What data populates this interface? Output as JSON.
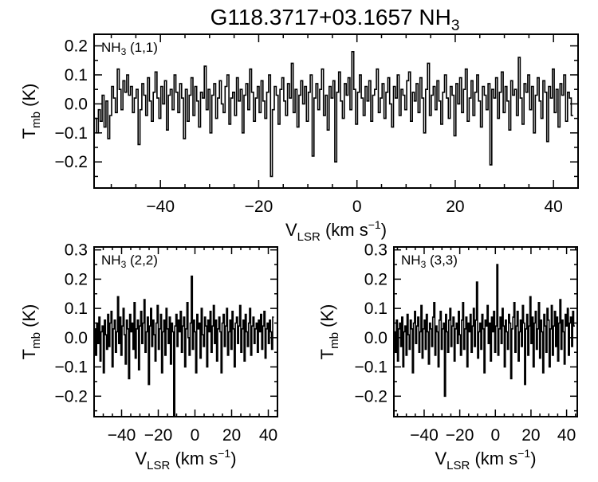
{
  "title": {
    "main": "G118.3717+03.1657 NH",
    "sub": "3"
  },
  "chart_data": [
    {
      "type": "line",
      "panel": "top",
      "step": true,
      "label": {
        "main": "NH",
        "sub": "3",
        "rest": " (1,1)"
      },
      "xlabel": {
        "main": "V",
        "sub": "LSR",
        "rest": " (km s",
        "sup": "−1",
        "end": ")"
      },
      "ylabel": {
        "main": "T",
        "sub": "mb",
        "rest": " (K)"
      },
      "xlim": [
        -53.5,
        45
      ],
      "ylim": [
        -0.29,
        0.24
      ],
      "xticks": [
        -40,
        -20,
        0,
        20,
        40
      ],
      "xticklabels": [
        "−40",
        "−20",
        "0",
        "20",
        "40"
      ],
      "yticks": [
        -0.2,
        -0.1,
        0.0,
        0.1,
        0.2
      ],
      "yticklabels": [
        "−0.2",
        "−0.1",
        "0.0",
        "0.1",
        "0.2"
      ],
      "x_start": -53.4,
      "x_step": 0.385,
      "series": [
        {
          "values": [
            -0.05,
            -0.1,
            -0.02,
            -0.06,
            0.03,
            -0.08,
            0.01,
            -0.12,
            -0.04,
            0.06,
            0.02,
            -0.03,
            0.12,
            0.05,
            -0.02,
            0.08,
            0.04,
            0.1,
            0.03,
            0.06,
            -0.03,
            0.02,
            0.05,
            -0.14,
            -0.02,
            0.07,
            0.03,
            -0.04,
            0.09,
            0.01,
            -0.06,
            0.04,
            0.11,
            0.02,
            -0.05,
            0.06,
            0.0,
            0.08,
            -0.09,
            0.03,
            0.05,
            -0.02,
            0.1,
            0.04,
            -0.03,
            0.07,
            0.02,
            -0.12,
            0.05,
            -0.06,
            0.03,
            0.09,
            -0.04,
            0.06,
            0.01,
            -0.08,
            0.04,
            0.02,
            0.13,
            -0.02,
            0.05,
            -0.1,
            0.03,
            0.07,
            -0.05,
            0.02,
            0.08,
            0.0,
            -0.03,
            0.06,
            0.1,
            -0.07,
            0.02,
            0.04,
            -0.04,
            0.09,
            0.01,
            0.05,
            -0.1,
            0.03,
            0.07,
            -0.02,
            0.12,
            0.04,
            -0.06,
            0.02,
            0.06,
            -0.03,
            0.08,
            0.01,
            -0.05,
            0.04,
            0.1,
            -0.25,
            -0.02,
            0.06,
            0.03,
            -0.07,
            0.05,
            0.09,
            0.01,
            -0.04,
            0.07,
            0.02,
            0.14,
            -0.03,
            0.05,
            -0.08,
            0.03,
            0.08,
            0.0,
            0.06,
            -0.06,
            0.04,
            0.1,
            -0.18,
            0.02,
            0.07,
            -0.02,
            0.05,
            0.12,
            -0.04,
            0.03,
            -0.09,
            0.06,
            0.02,
            0.08,
            -0.2,
            0.04,
            0.11,
            0.01,
            -0.05,
            0.07,
            0.03,
            0.09,
            -0.02,
            0.18,
            0.05,
            -0.07,
            0.04,
            0.1,
            0.02,
            -0.04,
            0.06,
            0.01,
            0.08,
            -0.06,
            0.03,
            0.05,
            0.12,
            -0.03,
            0.02,
            0.07,
            -0.05,
            0.04,
            0.09,
            0.0,
            -0.08,
            0.06,
            0.02,
            0.1,
            -0.04,
            0.05,
            0.03,
            -0.02,
            0.08,
            0.11,
            -0.06,
            0.04,
            0.01,
            0.07,
            -0.03,
            0.09,
            0.02,
            -0.1,
            0.05,
            0.14,
            -0.04,
            0.03,
            0.06,
            -0.02,
            0.08,
            0.01,
            -0.07,
            0.04,
            0.1,
            0.02,
            -0.05,
            0.06,
            0.03,
            -0.11,
            0.07,
            0.0,
            0.09,
            -0.03,
            0.05,
            0.12,
            -0.06,
            0.02,
            0.08,
            -0.04,
            0.04,
            0.1,
            0.01,
            -0.08,
            0.06,
            0.03,
            -0.02,
            0.07,
            -0.21,
            0.05,
            0.02,
            0.09,
            -0.05,
            0.04,
            0.11,
            -0.03,
            0.06,
            0.01,
            -0.09,
            0.08,
            0.03,
            0.05,
            -0.04,
            0.16,
            0.02,
            -0.07,
            0.07,
            0.04,
            0.1,
            -0.02,
            0.06,
            -0.1,
            0.03,
            0.09,
            0.01,
            -0.05,
            0.08,
            0.04,
            -0.13,
            0.06,
            0.02,
            0.12,
            -0.03,
            0.05,
            -0.08,
            0.07,
            0.03,
            0.1,
            -0.06,
            0.04,
            0.02,
            -0.04
          ]
        }
      ]
    },
    {
      "type": "line",
      "panel": "bottom-left",
      "step": true,
      "label": {
        "main": "NH",
        "sub": "3",
        "rest": " (2,2)"
      },
      "xlabel": {
        "main": "V",
        "sub": "LSR",
        "rest": " (km s",
        "sup": "−1",
        "end": ")"
      },
      "ylabel": {
        "main": "T",
        "sub": "mb",
        "rest": " (K)"
      },
      "xlim": [
        -55,
        45
      ],
      "ylim": [
        -0.27,
        0.31
      ],
      "xticks": [
        -40,
        -20,
        0,
        20,
        40
      ],
      "xticklabels": [
        "−40",
        "−20",
        "0",
        "20",
        "40"
      ],
      "yticks": [
        -0.2,
        -0.1,
        0.0,
        0.1,
        0.2,
        0.3
      ],
      "yticklabels": [
        "−0.2",
        "−0.1",
        "0.0",
        "0.1",
        "0.2",
        "0.3"
      ],
      "x_start": -54.8,
      "x_step": 0.6,
      "series": [
        {
          "values": [
            0.03,
            -0.06,
            0.05,
            -0.02,
            0.07,
            -0.08,
            0.02,
            0.04,
            -0.12,
            0.06,
            0.01,
            -0.04,
            0.08,
            -0.03,
            0.05,
            0.09,
            -0.1,
            0.03,
            0.06,
            -0.05,
            0.02,
            0.14,
            -0.02,
            0.07,
            -0.06,
            0.04,
            0.1,
            0.01,
            -0.09,
            0.06,
            0.03,
            -0.14,
            0.08,
            0.02,
            0.05,
            -0.04,
            0.12,
            -0.07,
            0.03,
            0.06,
            -0.11,
            0.04,
            0.09,
            -0.02,
            0.05,
            0.13,
            -0.05,
            0.02,
            0.07,
            -0.16,
            0.04,
            0.1,
            -0.03,
            0.06,
            0.01,
            -0.08,
            0.05,
            0.11,
            -0.04,
            0.03,
            0.08,
            -0.12,
            0.02,
            0.06,
            -0.06,
            0.1,
            0.03,
            -0.02,
            0.07,
            -0.09,
            0.05,
            0.02,
            -0.27,
            0.04,
            0.08,
            -0.03,
            0.06,
            0.02,
            0.09,
            -0.05,
            0.04,
            0.07,
            -0.1,
            0.03,
            0.12,
            0.0,
            -0.06,
            0.05,
            0.21,
            -0.04,
            0.06,
            0.02,
            -0.12,
            0.08,
            0.03,
            0.05,
            -0.07,
            0.1,
            0.01,
            -0.03,
            0.07,
            0.04,
            -0.1,
            0.06,
            0.02,
            0.09,
            -0.05,
            0.04,
            0.11,
            -0.02,
            0.06,
            -0.08,
            0.03,
            0.07,
            0.02,
            -0.12,
            0.05,
            0.08,
            -0.03,
            0.04,
            0.1,
            -0.06,
            0.02,
            0.06,
            -0.04,
            0.09,
            0.03,
            -0.1,
            0.05,
            0.07,
            -0.02,
            0.04,
            0.11,
            -0.05,
            0.03,
            0.06,
            -0.08,
            0.08,
            0.02,
            -0.03,
            0.05,
            0.1,
            -0.06,
            0.04,
            0.07,
            -0.02,
            0.03,
            0.05,
            -0.05,
            0.06,
            0.02,
            0.08,
            -0.04,
            0.04,
            0.09,
            -0.07,
            0.03,
            0.05,
            -0.02,
            0.06,
            0.02,
            -0.04,
            0.07
          ]
        }
      ]
    },
    {
      "type": "line",
      "panel": "bottom-right",
      "step": true,
      "label": {
        "main": "NH",
        "sub": "3",
        "rest": " (3,3)"
      },
      "xlabel": {
        "main": "V",
        "sub": "LSR",
        "rest": " (km s",
        "sup": "−1",
        "end": ")"
      },
      "ylabel": {
        "main": "T",
        "sub": "mb",
        "rest": " (K)"
      },
      "xlim": [
        -57,
        46
      ],
      "ylim": [
        -0.27,
        0.31
      ],
      "xticks": [
        -40,
        -20,
        0,
        20,
        40
      ],
      "xticklabels": [
        "−40",
        "−20",
        "0",
        "20",
        "40"
      ],
      "yticks": [
        -0.2,
        -0.1,
        0.0,
        0.1,
        0.2,
        0.3
      ],
      "yticklabels": [
        "−0.2",
        "−0.1",
        "0.0",
        "0.1",
        "0.2",
        "0.3"
      ],
      "x_start": -56.8,
      "x_step": 0.6,
      "series": [
        {
          "values": [
            0.02,
            -0.05,
            0.06,
            -0.08,
            0.03,
            0.05,
            -0.03,
            0.07,
            -0.1,
            0.02,
            0.04,
            -0.06,
            0.08,
            0.01,
            -0.04,
            0.06,
            0.03,
            -0.12,
            0.05,
            0.09,
            -0.02,
            0.04,
            0.07,
            -0.05,
            0.02,
            0.11,
            -0.07,
            0.03,
            0.06,
            -0.04,
            0.08,
            0.02,
            -0.09,
            0.05,
            0.03,
            -0.03,
            0.07,
            0.12,
            -0.06,
            0.04,
            0.02,
            -0.1,
            0.06,
            0.09,
            -0.04,
            0.03,
            0.05,
            -0.2,
            0.08,
            0.02,
            -0.05,
            0.06,
            0.1,
            -0.03,
            0.04,
            0.07,
            -0.08,
            0.03,
            0.05,
            -0.02,
            0.09,
            0.01,
            -0.06,
            0.06,
            0.12,
            -0.04,
            0.03,
            0.07,
            -0.1,
            0.05,
            0.02,
            0.08,
            -0.05,
            0.04,
            0.1,
            -0.03,
            0.06,
            0.19,
            -0.07,
            0.02,
            0.05,
            -0.04,
            0.08,
            0.03,
            -0.12,
            0.06,
            0.04,
            0.11,
            -0.02,
            0.05,
            -0.08,
            0.07,
            0.02,
            0.09,
            -0.05,
            0.04,
            0.25,
            -0.06,
            0.03,
            0.07,
            -0.02,
            0.1,
            0.04,
            -0.1,
            0.06,
            0.02,
            -0.04,
            0.08,
            0.05,
            -0.14,
            0.03,
            0.07,
            0.12,
            -0.05,
            0.04,
            0.09,
            -0.08,
            0.02,
            0.06,
            -0.03,
            0.11,
            0.05,
            -0.16,
            0.03,
            0.08,
            -0.06,
            0.04,
            0.14,
            -0.02,
            0.07,
            -0.1,
            0.05,
            0.09,
            -0.04,
            0.03,
            0.12,
            -0.07,
            0.06,
            0.02,
            -0.12,
            0.08,
            0.04,
            -0.05,
            0.1,
            0.06,
            -0.1,
            0.03,
            0.11,
            -0.06,
            0.04,
            0.09,
            -0.03,
            0.07,
            -0.08,
            0.05,
            0.13,
            -0.04,
            0.06,
            0.02,
            -0.09,
            0.08,
            0.04,
            0.1,
            -0.06,
            0.05,
            0.07,
            -0.03,
            0.09,
            0.04
          ]
        }
      ]
    }
  ]
}
